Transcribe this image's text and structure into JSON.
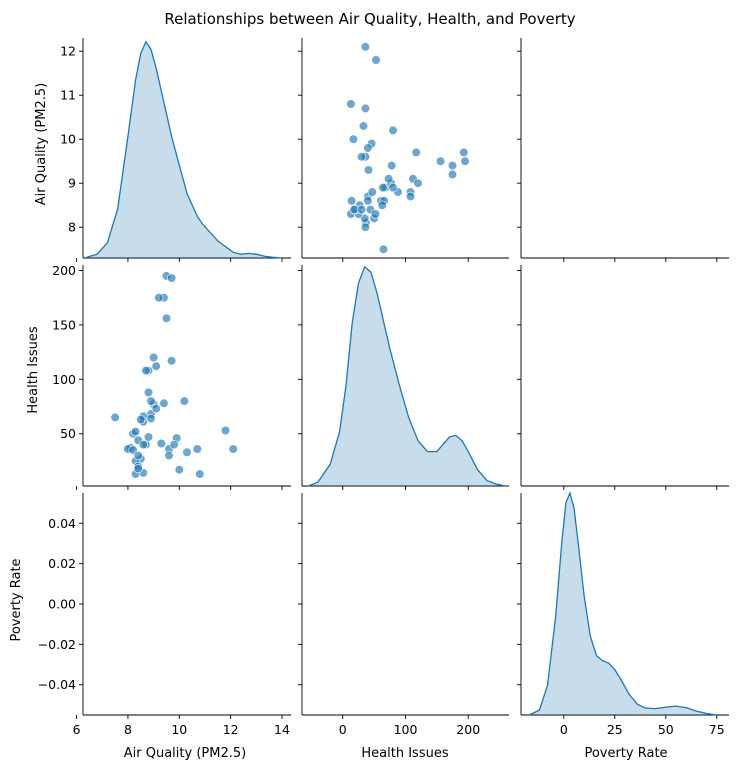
{
  "chart_data": {
    "type": "scatter",
    "title": "Relationships between Air Quality, Health, and Poverty",
    "variables": [
      "Air Quality (PM2.5)",
      "Health Issues",
      "Poverty Rate"
    ],
    "x_ticks": {
      "air_quality": [
        "6",
        "8",
        "10",
        "12",
        "14"
      ],
      "health": [
        "0",
        "100",
        "200"
      ],
      "poverty": [
        "0",
        "25",
        "50",
        "75"
      ]
    },
    "y_ticks": {
      "air_quality": [
        "8",
        "9",
        "10",
        "11",
        "12"
      ],
      "health": [
        "50",
        "100",
        "150",
        "200"
      ],
      "poverty": [
        "−0.04",
        "−0.02",
        "0.00",
        "0.02",
        "0.04"
      ]
    },
    "axis_ranges": {
      "air_quality": [
        6.25,
        14.35
      ],
      "health": [
        -65,
        265
      ],
      "poverty": [
        -21,
        81
      ],
      "air_quality_y": [
        7.3,
        12.3
      ],
      "health_y": [
        2,
        205
      ],
      "poverty_y": [
        -0.055,
        0.055
      ]
    },
    "diag_ranges": {
      "air_quality": [
        0,
        0.58
      ],
      "health": [
        0,
        0.0122
      ],
      "poverty": [
        0,
        0.045
      ]
    },
    "kde": {
      "air_quality": {
        "x": [
          6.4,
          6.8,
          7.2,
          7.6,
          8.0,
          8.3,
          8.5,
          8.7,
          8.9,
          9.1,
          9.3,
          9.5,
          9.7,
          9.9,
          10.1,
          10.3,
          10.5,
          10.7,
          10.9,
          11.1,
          11.3,
          11.5,
          11.8,
          12.1,
          12.4,
          12.7,
          13.0,
          13.3,
          13.6,
          14.0
        ],
        "d": [
          0.002,
          0.01,
          0.04,
          0.13,
          0.32,
          0.47,
          0.54,
          0.57,
          0.55,
          0.5,
          0.44,
          0.38,
          0.32,
          0.27,
          0.22,
          0.17,
          0.14,
          0.11,
          0.09,
          0.075,
          0.06,
          0.045,
          0.03,
          0.015,
          0.01,
          0.012,
          0.01,
          0.005,
          0.002,
          0.0
        ]
      },
      "health": {
        "x": [
          -55,
          -40,
          -20,
          -5,
          5,
          15,
          25,
          35,
          45,
          55,
          65,
          75,
          90,
          105,
          120,
          135,
          150,
          160,
          170,
          180,
          190,
          200,
          215,
          230,
          245,
          260
        ],
        "d": [
          0.0,
          0.0002,
          0.0012,
          0.003,
          0.0055,
          0.009,
          0.0112,
          0.0121,
          0.0118,
          0.0106,
          0.0091,
          0.0076,
          0.0056,
          0.0038,
          0.0025,
          0.0019,
          0.0019,
          0.0023,
          0.0027,
          0.0028,
          0.0025,
          0.0019,
          0.0009,
          0.0003,
          0.0001,
          0.0
        ]
      },
      "poverty": {
        "x": [
          -17,
          -12,
          -8,
          -4,
          -1,
          1,
          3,
          5,
          7,
          10,
          13,
          16,
          19,
          22,
          25,
          28,
          32,
          36,
          40,
          45,
          50,
          55,
          60,
          65,
          70,
          75
        ],
        "d": [
          0.0,
          0.001,
          0.006,
          0.02,
          0.035,
          0.043,
          0.045,
          0.042,
          0.035,
          0.024,
          0.016,
          0.012,
          0.011,
          0.0105,
          0.0092,
          0.0072,
          0.0042,
          0.0022,
          0.0014,
          0.0013,
          0.0016,
          0.0018,
          0.0015,
          0.0008,
          0.0003,
          0.0
        ]
      }
    },
    "points": {
      "air_quality": [
        8.3,
        8.5,
        8.1,
        8.4,
        8.7,
        8.2,
        8.6,
        8.9,
        9.0,
        9.4,
        9.1,
        8.8,
        8.6,
        8.3,
        8.5,
        8.0,
        9.6,
        9.3,
        9.9,
        10.3,
        10.7,
        11.8,
        12.1,
        10.2,
        9.5,
        9.7,
        9.4,
        9.2,
        9.5,
        9.7,
        8.7,
        8.8,
        8.9,
        9.1,
        8.9,
        7.5,
        8.2,
        8.3,
        8.4,
        8.6,
        9.6,
        9.8,
        8.8,
        8.4,
        9.0,
        10.8,
        10.0,
        8.4,
        8.6
      ],
      "health": [
        13,
        27,
        37,
        44,
        40,
        50,
        61,
        68,
        77,
        78,
        112,
        108,
        66,
        52,
        63,
        36,
        36,
        41,
        46,
        33,
        36,
        53,
        36,
        80,
        195,
        193,
        175,
        175,
        156,
        117,
        108,
        88,
        80,
        73,
        64,
        65,
        35,
        25,
        20,
        14,
        30,
        40,
        47,
        18,
        120,
        13,
        17,
        30,
        40
      ]
    }
  }
}
